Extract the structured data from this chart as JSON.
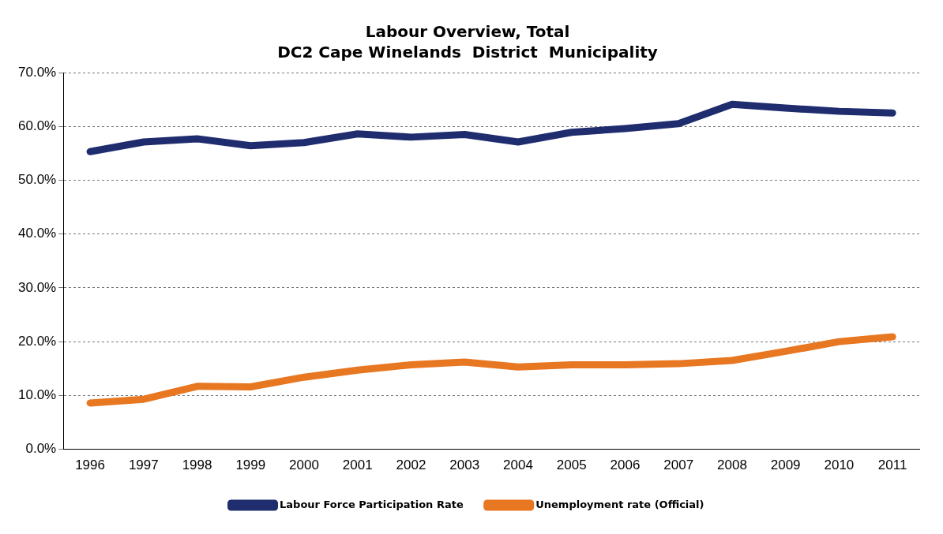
{
  "chart_data": {
    "type": "line",
    "title": "Labour Overview, Total",
    "subtitle": "DC2 Cape Winelands  District  Municipality",
    "categories": [
      "1996",
      "1997",
      "1998",
      "1999",
      "2000",
      "2001",
      "2002",
      "2003",
      "2004",
      "2005",
      "2006",
      "2007",
      "2008",
      "2009",
      "2010",
      "2011"
    ],
    "series": [
      {
        "name": "Labour Force Participation Rate",
        "color": "#1f2d6e",
        "values": [
          55.3,
          57.1,
          57.7,
          56.4,
          57.0,
          58.6,
          58.0,
          58.5,
          57.1,
          58.9,
          59.6,
          60.5,
          64.1,
          63.4,
          62.8,
          62.5
        ]
      },
      {
        "name": "Unemployment rate (Official)",
        "color": "#e87722",
        "values": [
          8.6,
          9.3,
          11.7,
          11.6,
          13.4,
          14.7,
          15.7,
          16.2,
          15.3,
          15.7,
          15.7,
          15.9,
          16.5,
          18.2,
          20.0,
          20.9
        ]
      }
    ],
    "ylim": [
      0,
      70
    ],
    "yticks": [
      {
        "value": 0,
        "label": "0.0%"
      },
      {
        "value": 10,
        "label": "10.0%"
      },
      {
        "value": 20,
        "label": "20.0%"
      },
      {
        "value": 30,
        "label": "30.0%"
      },
      {
        "value": 40,
        "label": "40.0%"
      },
      {
        "value": 50,
        "label": "50.0%"
      },
      {
        "value": 60,
        "label": "60.0%"
      },
      {
        "value": 70,
        "label": "70.0%"
      }
    ],
    "grid": "y",
    "legend": "bottom",
    "marker": "none",
    "line_style": "solid"
  }
}
